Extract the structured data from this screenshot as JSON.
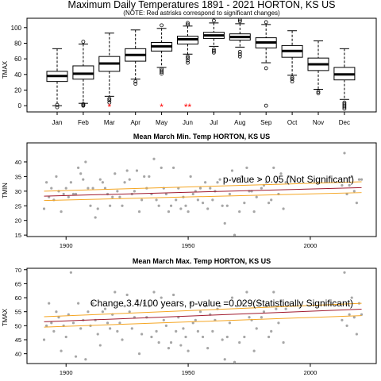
{
  "chart_data": [
    {
      "type": "boxplot",
      "title": "Maximum Daily Temperatures 1891 - 2021 HORTON, KS US",
      "subtitle": "(NOTE: Red astrisks correspond to significant changes)",
      "xlabel": "",
      "ylabel": "TMAX",
      "ylim": [
        -8,
        112
      ],
      "yticks": [
        0,
        20,
        40,
        60,
        80,
        100
      ],
      "categories": [
        "Jan",
        "Feb",
        "Mar",
        "Apr",
        "May",
        "Jun",
        "Jul",
        "Aug",
        "Sep",
        "Oct",
        "Nov",
        "Dec"
      ],
      "boxes": [
        {
          "whisker_low": 0,
          "q1": 31,
          "median": 38,
          "q3": 44,
          "whisker_high": 73,
          "outliers": [
            -2,
            1
          ]
        },
        {
          "whisker_low": 3,
          "q1": 34,
          "median": 41,
          "q3": 51,
          "whisker_high": 79,
          "outliers": [
            0,
            1,
            2,
            82
          ]
        },
        {
          "whisker_low": 12,
          "q1": 44,
          "median": 54,
          "q3": 63,
          "whisker_high": 93,
          "outliers": [
            4,
            7,
            9
          ]
        },
        {
          "whisker_low": 34,
          "q1": 57,
          "median": 65,
          "q3": 73,
          "whisker_high": 97,
          "outliers": [
            28,
            31
          ]
        },
        {
          "whisker_low": 49,
          "q1": 70,
          "median": 76,
          "q3": 81,
          "whisker_high": 99,
          "outliers": [
            41,
            43,
            45,
            47,
            103
          ]
        },
        {
          "whisker_low": 66,
          "q1": 79,
          "median": 85,
          "q3": 89,
          "whisker_high": 102,
          "outliers": [
            55,
            58,
            61,
            63,
            104,
            106
          ]
        },
        {
          "whisker_low": 76,
          "q1": 86,
          "median": 90,
          "q3": 94,
          "whisker_high": 106,
          "outliers": [
            68,
            70,
            72,
            109
          ]
        },
        {
          "whisker_low": 75,
          "q1": 84,
          "median": 88,
          "q3": 92,
          "whisker_high": 105,
          "outliers": [
            63,
            66,
            69,
            108,
            110
          ]
        },
        {
          "whisker_low": 55,
          "q1": 74,
          "median": 81,
          "q3": 87,
          "whisker_high": 104,
          "outliers": [
            0,
            48,
            107
          ]
        },
        {
          "whisker_low": 39,
          "q1": 62,
          "median": 70,
          "q3": 77,
          "whisker_high": 96,
          "outliers": [
            31,
            34,
            36
          ]
        },
        {
          "whisker_low": 21,
          "q1": 45,
          "median": 53,
          "q3": 61,
          "whisker_high": 83,
          "outliers": [
            16,
            18
          ]
        },
        {
          "whisker_low": 8,
          "q1": 33,
          "median": 40,
          "q3": 49,
          "whisker_high": 73,
          "outliers": [
            -4,
            -2,
            0,
            2,
            4
          ]
        }
      ],
      "significance_markers": [
        {
          "category": "Mar",
          "text": "*",
          "value": 0
        },
        {
          "category": "May",
          "text": "*",
          "value": 0
        },
        {
          "category": "Jun",
          "text": "**",
          "value": 0
        }
      ],
      "marker_color": "#ff0000"
    },
    {
      "type": "scatter",
      "title": "Mean March Min. Temp HORTON, KS US",
      "ylabel": "TMIN",
      "xlim": [
        1884,
        2027
      ],
      "ylim": [
        14.5,
        46.5
      ],
      "xticks": [
        1900,
        1950,
        2000
      ],
      "yticks": [
        15,
        20,
        25,
        30,
        35,
        40
      ],
      "annotation": "p-value > 0.05 (Not Significant)",
      "point_color": "#a6a6a6",
      "trend_color": "#a0192d",
      "band_color": "#f5a623",
      "trend": {
        "x": [
          1891,
          2021
        ],
        "y": [
          28.3,
          31.2
        ]
      },
      "band_upper": {
        "x": [
          1891,
          2021
        ],
        "y": [
          30.0,
          33.2
        ]
      },
      "band_lower": {
        "x": [
          1891,
          2021
        ],
        "y": [
          26.8,
          29.5
        ]
      },
      "x": [
        1891,
        1892,
        1893,
        1894,
        1895,
        1896,
        1897,
        1898,
        1899,
        1900,
        1901,
        1902,
        1903,
        1904,
        1905,
        1906,
        1907,
        1908,
        1909,
        1910,
        1911,
        1912,
        1913,
        1914,
        1915,
        1916,
        1917,
        1918,
        1919,
        1920,
        1921,
        1922,
        1923,
        1924,
        1925,
        1926,
        1927,
        1928,
        1929,
        1930,
        1931,
        1932,
        1933,
        1934,
        1935,
        1936,
        1937,
        1938,
        1939,
        1940,
        1941,
        1942,
        1943,
        1944,
        1945,
        1946,
        1947,
        1948,
        1949,
        1950,
        1951,
        1952,
        1953,
        1954,
        1955,
        1956,
        1957,
        1958,
        1959,
        1960,
        1961,
        1962,
        1963,
        1964,
        1965,
        1966,
        1967,
        1968,
        1969,
        1970,
        1971,
        1972,
        1973,
        1974,
        1975,
        1976,
        1977,
        1978,
        1979,
        1980,
        1981,
        1982,
        1983,
        1984,
        1985,
        1986,
        1987,
        1988,
        1989,
        1990,
        1991,
        2013,
        2014,
        2015,
        2016,
        2017,
        2018,
        2019,
        2020,
        2021
      ],
      "y": [
        24,
        33,
        28,
        31,
        27,
        35,
        30,
        23,
        29,
        31,
        28,
        33,
        29,
        29,
        38,
        36,
        34,
        40,
        31,
        25,
        31,
        21,
        24,
        34,
        33,
        31,
        29,
        25,
        28,
        36,
        30,
        28,
        25,
        33,
        37,
        34,
        29,
        30,
        37,
        23,
        27,
        35,
        31,
        35,
        29,
        41,
        27,
        25,
        38,
        31,
        29,
        23,
        25,
        38,
        27,
        31,
        24,
        28,
        25,
        23,
        35,
        29,
        30,
        27,
        31,
        26,
        33,
        24,
        31,
        27,
        30,
        33,
        34,
        25,
        19,
        25,
        29,
        37,
        15,
        34,
        23,
        35,
        26,
        38,
        30,
        30,
        23,
        28,
        34,
        31,
        32,
        33,
        26,
        27,
        38,
        33,
        29,
        36,
        24,
        33,
        35,
        32,
        43,
        29,
        32,
        35,
        30,
        26,
        34,
        34
      ]
    },
    {
      "type": "scatter",
      "title": "Mean March Max. Temp HORTON, KS US",
      "ylabel": "TMAX",
      "xlim": [
        1884,
        2027
      ],
      "ylim": [
        36.5,
        70.5
      ],
      "xticks": [
        1900,
        1950,
        2000
      ],
      "yticks": [
        40,
        45,
        50,
        55,
        60,
        65,
        70
      ],
      "annotation": "Change 3.4/100 years, p-value =0.029(Statistically Significant)",
      "point_color": "#a6a6a6",
      "trend_color": "#a0192d",
      "band_color": "#f5a623",
      "trend": {
        "x": [
          1891,
          2021
        ],
        "y": [
          51.4,
          55.9
        ]
      },
      "band_upper": {
        "x": [
          1891,
          2021
        ],
        "y": [
          53.2,
          58.0
        ]
      },
      "band_lower": {
        "x": [
          1891,
          2021
        ],
        "y": [
          49.5,
          53.6
        ]
      },
      "x": [
        1891,
        1892,
        1893,
        1894,
        1895,
        1896,
        1897,
        1898,
        1899,
        1900,
        1901,
        1902,
        1903,
        1904,
        1905,
        1906,
        1907,
        1908,
        1909,
        1910,
        1911,
        1912,
        1913,
        1914,
        1915,
        1916,
        1917,
        1918,
        1919,
        1920,
        1921,
        1922,
        1923,
        1924,
        1925,
        1926,
        1927,
        1928,
        1929,
        1930,
        1931,
        1932,
        1933,
        1934,
        1935,
        1936,
        1937,
        1938,
        1939,
        1940,
        1941,
        1942,
        1943,
        1944,
        1945,
        1946,
        1947,
        1948,
        1949,
        1950,
        1951,
        1952,
        1953,
        1954,
        1955,
        1956,
        1957,
        1958,
        1959,
        1960,
        1961,
        1962,
        1963,
        1964,
        1965,
        1966,
        1967,
        1968,
        1969,
        1970,
        1971,
        1972,
        1973,
        1974,
        1975,
        1976,
        1977,
        1978,
        1979,
        1980,
        1981,
        1982,
        1983,
        1984,
        1985,
        1986,
        1987,
        1988,
        1989,
        1990,
        1991,
        2013,
        2014,
        2015,
        2016,
        2017,
        2018,
        2019,
        2020,
        2021
      ],
      "y": [
        45,
        50,
        58,
        51,
        48,
        55,
        53,
        41,
        50,
        46,
        54,
        69,
        51,
        39,
        58,
        49,
        52,
        38,
        55,
        50,
        58,
        52,
        47,
        43,
        55,
        56,
        51,
        49,
        54,
        62,
        48,
        51,
        45,
        57,
        61,
        55,
        49,
        53,
        59,
        40,
        47,
        58,
        53,
        57,
        46,
        62,
        48,
        44,
        60,
        52,
        50,
        42,
        44,
        61,
        48,
        53,
        43,
        49,
        46,
        41,
        58,
        51,
        52,
        48,
        55,
        46,
        57,
        42,
        54,
        48,
        52,
        56,
        57,
        45,
        38,
        46,
        51,
        60,
        37,
        57,
        44,
        58,
        46,
        62,
        53,
        52,
        41,
        49,
        58,
        53,
        55,
        57,
        46,
        48,
        62,
        56,
        51,
        59,
        44,
        56,
        58,
        52,
        69,
        50,
        54,
        60,
        53,
        47,
        58,
        54
      ]
    }
  ]
}
